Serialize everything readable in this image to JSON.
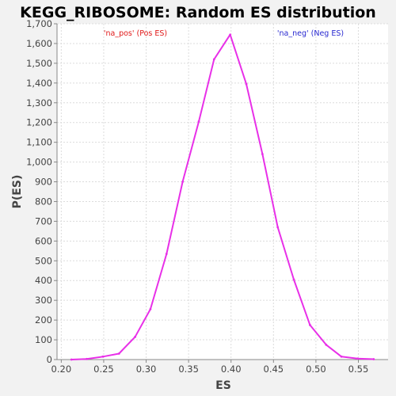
{
  "chart_data": {
    "type": "line",
    "title": "KEGG_RIBOSOME: Random ES distribution",
    "xlabel": "ES",
    "ylabel": "P(ES)",
    "xlim": [
      0.195,
      0.585
    ],
    "ylim": [
      0,
      1700
    ],
    "x_ticks": [
      "0.20",
      "0.25",
      "0.30",
      "0.35",
      "0.40",
      "0.45",
      "0.50",
      "0.55"
    ],
    "x_tick_values": [
      0.2,
      0.25,
      0.3,
      0.35,
      0.4,
      0.45,
      0.5,
      0.55
    ],
    "y_ticks": [
      "0",
      "100",
      "200",
      "300",
      "400",
      "500",
      "600",
      "700",
      "800",
      "900",
      "1,000",
      "1,100",
      "1,200",
      "1,300",
      "1,400",
      "1,500",
      "1,600",
      "1,700"
    ],
    "y_tick_values": [
      0,
      100,
      200,
      300,
      400,
      500,
      600,
      700,
      800,
      900,
      1000,
      1100,
      1200,
      1300,
      1400,
      1500,
      1600,
      1700
    ],
    "grid": true,
    "legend": [
      "'na_pos' (Pos ES)",
      "'na_neg' (Neg ES)"
    ],
    "series_color": "#e830e8",
    "x": [
      0.212,
      0.23,
      0.249,
      0.268,
      0.287,
      0.305,
      0.324,
      0.343,
      0.362,
      0.38,
      0.399,
      0.418,
      0.437,
      0.455,
      0.474,
      0.493,
      0.512,
      0.53,
      0.549,
      0.568
    ],
    "y": [
      0,
      3,
      15,
      30,
      115,
      255,
      535,
      900,
      1205,
      1520,
      1645,
      1395,
      1040,
      670,
      405,
      175,
      75,
      15,
      5,
      2
    ]
  }
}
